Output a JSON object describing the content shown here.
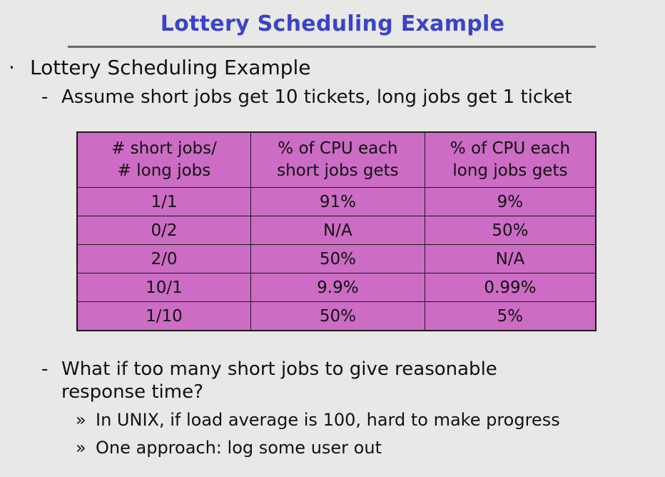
{
  "title": "Lottery Scheduling Example",
  "bullet": {
    "marker": "·",
    "text": "Lottery Scheduling Example"
  },
  "assumption": {
    "marker": "-",
    "text": "Assume short jobs get 10 tickets, long jobs get 1 ticket"
  },
  "table": {
    "headers": [
      [
        "# short jobs/",
        "# long jobs"
      ],
      [
        "% of CPU each",
        "short jobs gets"
      ],
      [
        "% of CPU each",
        "long jobs gets"
      ]
    ],
    "rows": [
      [
        "1/1",
        "91%",
        "9%"
      ],
      [
        "0/2",
        "N/A",
        "50%"
      ],
      [
        "2/0",
        "50%",
        "N/A"
      ],
      [
        "10/1",
        "9.9%",
        "0.99%"
      ],
      [
        "1/10",
        "50%",
        "5%"
      ]
    ],
    "fill_color": "#cc6cc4"
  },
  "question": {
    "marker": "-",
    "line1": "What if too many short jobs to give reasonable",
    "line2": "response time?"
  },
  "sub_points": [
    {
      "marker": "»",
      "text": "In UNIX, if load average is 100, hard to make progress"
    },
    {
      "marker": "»",
      "text": "One approach: log some user out"
    }
  ],
  "colors": {
    "title": "#3a44c8",
    "background": "#e8e8e6"
  }
}
